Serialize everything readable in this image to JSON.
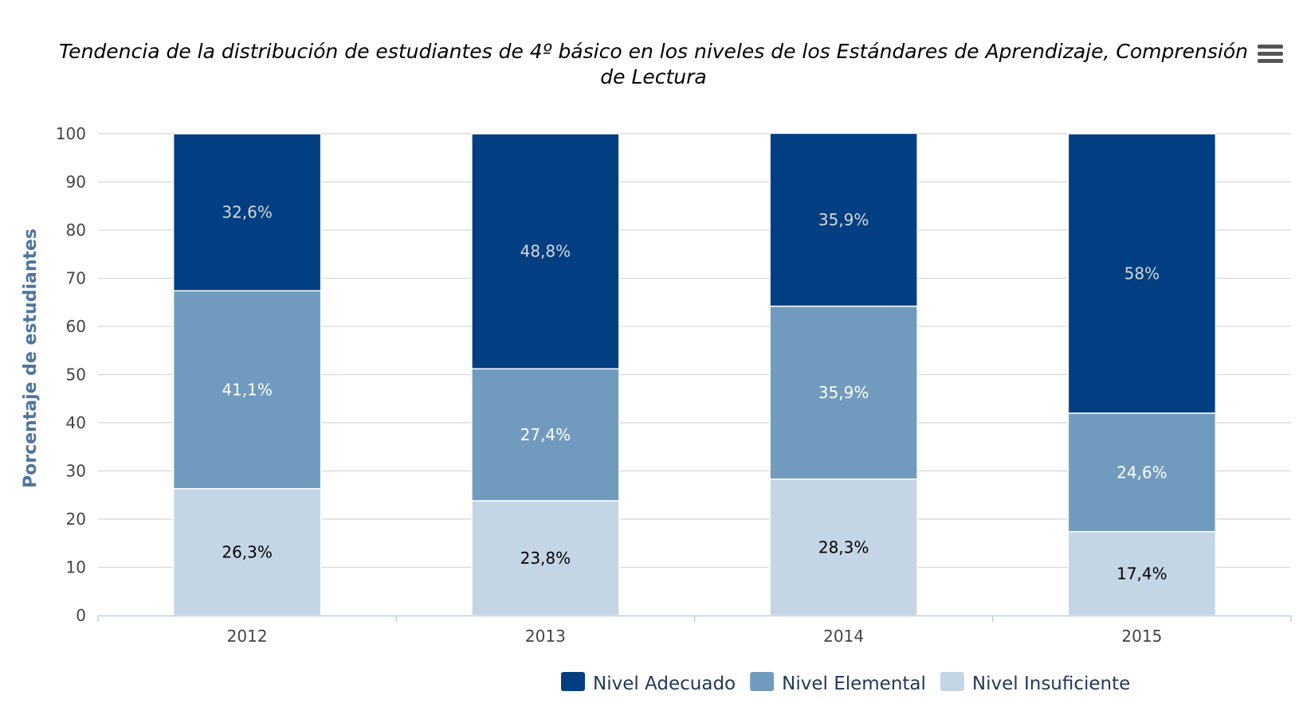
{
  "chart_data": {
    "type": "bar",
    "stacked": true,
    "title": "Tendencia de la distribución de estudiantes de 4º básico en los niveles de los Estándares de Aprendizaje, Comprensión de Lectura",
    "title_lines": [
      "Tendencia de la distribución de estudiantes de 4º básico en los niveles de los Estándares de Aprendizaje, Comprensión",
      "de Lectura"
    ],
    "xlabel": "",
    "ylabel": "Porcentaje de estudiantes",
    "ylim": [
      0,
      100
    ],
    "yticks": [
      0,
      10,
      20,
      30,
      40,
      50,
      60,
      70,
      80,
      90,
      100
    ],
    "categories": [
      "2012",
      "2013",
      "2014",
      "2015"
    ],
    "grid": true,
    "legend_position": "bottom-right",
    "series": [
      {
        "name": "Nivel Insuficiente",
        "color": "#c4d5e6",
        "label_color": "#000000",
        "values": [
          26.3,
          23.8,
          28.3,
          17.4
        ],
        "labels": [
          "26,3%",
          "23,8%",
          "28,3%",
          "17,4%"
        ]
      },
      {
        "name": "Nivel Elemental",
        "color": "#719bbe",
        "label_color": "#ffffff",
        "values": [
          41.1,
          27.4,
          35.9,
          24.6
        ],
        "labels": [
          "41,1%",
          "27,4%",
          "35,9%",
          "24,6%"
        ]
      },
      {
        "name": "Nivel Adecuado",
        "color": "#023f82",
        "label_color": "#d8d8d8",
        "values": [
          32.6,
          48.8,
          35.9,
          58
        ],
        "labels": [
          "32,6%",
          "48,8%",
          "35,9%",
          "58%"
        ]
      }
    ],
    "legend_order": [
      "Nivel Adecuado",
      "Nivel Elemental",
      "Nivel Insuficiente"
    ]
  },
  "menu": {
    "icon": "hamburger-menu-icon",
    "color": "#555555"
  }
}
